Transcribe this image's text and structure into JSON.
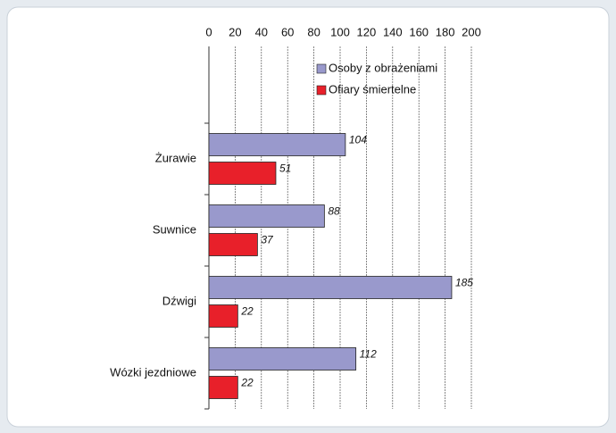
{
  "chart_data": {
    "type": "bar",
    "orientation": "horizontal",
    "categories": [
      "Żurawie",
      "Suwnice",
      "Dźwigi",
      "Wózki jezdniowe"
    ],
    "series": [
      {
        "name": "Osoby z obrażeniami",
        "color": "#9999cc",
        "values": [
          104,
          88,
          185,
          112
        ]
      },
      {
        "name": "Ofiary śmiertelne",
        "color": "#e8202a",
        "values": [
          51,
          37,
          22,
          22
        ]
      }
    ],
    "xlim": [
      0,
      200
    ],
    "xticks": [
      0,
      20,
      40,
      60,
      80,
      100,
      120,
      140,
      160,
      180,
      200
    ],
    "grid": true
  }
}
